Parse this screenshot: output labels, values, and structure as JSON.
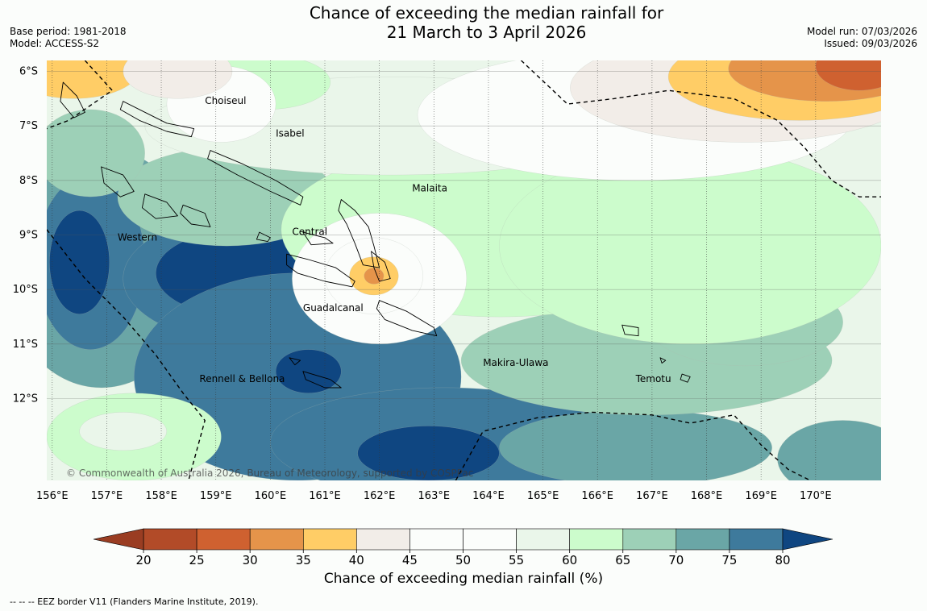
{
  "header": {
    "title_line1": "Chance of exceeding the median rainfall for",
    "title_line2": "21 March to 3 April 2026",
    "base_period": "Base period: 1981-2018",
    "model": "Model: ACCESS-S2",
    "model_run": "Model run: 07/03/2026",
    "issued": "Issued: 09/03/2026"
  },
  "map": {
    "lon_range": [
      155.2,
      170.5
    ],
    "lat_range": [
      -13.5,
      -5.8
    ],
    "lat_ticks": [
      {
        "value": -6,
        "label": "6°S"
      },
      {
        "value": -7,
        "label": "7°S"
      },
      {
        "value": -8,
        "label": "8°S"
      },
      {
        "value": -9,
        "label": "9°S"
      },
      {
        "value": -10,
        "label": "10°S"
      },
      {
        "value": -11,
        "label": "11°S"
      },
      {
        "value": -12,
        "label": "12°S"
      }
    ],
    "lon_ticks": [
      {
        "value": 156,
        "label": "156°E"
      },
      {
        "value": 157,
        "label": "157°E"
      },
      {
        "value": 158,
        "label": "158°E"
      },
      {
        "value": 159,
        "label": "159°E"
      },
      {
        "value": 160,
        "label": "160°E"
      },
      {
        "value": 161,
        "label": "161°E"
      },
      {
        "value": 162,
        "label": "162°E"
      },
      {
        "value": 163,
        "label": "163°E"
      },
      {
        "value": 164,
        "label": "164°E"
      },
      {
        "value": 165,
        "label": "165°E"
      },
      {
        "value": 166,
        "label": "166°E"
      },
      {
        "value": 167,
        "label": "167°E"
      },
      {
        "value": 168,
        "label": "168°E"
      },
      {
        "value": 169,
        "label": "169°E"
      },
      {
        "value": 170,
        "label": "170°E"
      }
    ],
    "province_labels": [
      {
        "name": "Choiseul",
        "lon": 158.1,
        "lat": -6.6
      },
      {
        "name": "Isabel",
        "lon": 159.4,
        "lat": -7.2
      },
      {
        "name": "Malaita",
        "lon": 161.9,
        "lat": -8.2
      },
      {
        "name": "Central",
        "lon": 159.7,
        "lat": -9.0
      },
      {
        "name": "Western",
        "lon": 156.5,
        "lat": -9.1
      },
      {
        "name": "Guadalcanal",
        "lon": 159.9,
        "lat": -10.4
      },
      {
        "name": "Makira-Ulawa",
        "lon": 163.2,
        "lat": -11.4
      },
      {
        "name": "Temotu",
        "lon": 166.0,
        "lat": -11.7
      },
      {
        "name": "Rennell & Bellona",
        "lon": 158.0,
        "lat": -11.7
      }
    ],
    "copyright": "© Commonwealth of Australia 2026, Bureau of Meteorology, supported by COSPPac",
    "probability_field": {
      "description": "approximate probability (%) field reproduced as smooth blobs",
      "background": 57,
      "features": [
        {
          "lon": 156.2,
          "lat": -9.6,
          "rx": 1.8,
          "ry": 2.2,
          "value": 73
        },
        {
          "lon": 156.0,
          "lat": -9.5,
          "rx": 1.0,
          "ry": 1.6,
          "value": 78
        },
        {
          "lon": 155.8,
          "lat": -9.5,
          "rx": 0.55,
          "ry": 0.95,
          "value": 82
        },
        {
          "lon": 159.0,
          "lat": -9.8,
          "rx": 2.4,
          "ry": 1.2,
          "value": 77
        },
        {
          "lon": 158.8,
          "lat": -9.7,
          "rx": 1.6,
          "ry": 0.8,
          "value": 81
        },
        {
          "lon": 159.8,
          "lat": -11.6,
          "rx": 3.0,
          "ry": 1.9,
          "value": 76
        },
        {
          "lon": 160.0,
          "lat": -11.5,
          "rx": 0.6,
          "ry": 0.4,
          "value": 81
        },
        {
          "lon": 162.5,
          "lat": -12.8,
          "rx": 3.2,
          "ry": 1.0,
          "value": 77
        },
        {
          "lon": 162.2,
          "lat": -13.0,
          "rx": 1.3,
          "ry": 0.5,
          "value": 81
        },
        {
          "lon": 166.0,
          "lat": -12.9,
          "rx": 2.5,
          "ry": 0.7,
          "value": 74
        },
        {
          "lon": 169.8,
          "lat": -13.1,
          "rx": 1.2,
          "ry": 0.7,
          "value": 73
        },
        {
          "lon": 166.2,
          "lat": -11.3,
          "rx": 3.4,
          "ry": 1.0,
          "value": 67
        },
        {
          "lon": 168.0,
          "lat": -10.6,
          "rx": 1.8,
          "ry": 0.8,
          "value": 66
        },
        {
          "lon": 158.5,
          "lat": -8.3,
          "rx": 2.0,
          "ry": 0.9,
          "value": 68
        },
        {
          "lon": 156.0,
          "lat": -7.5,
          "rx": 1.0,
          "ry": 0.8,
          "value": 66
        },
        {
          "lon": 163.5,
          "lat": -8.9,
          "rx": 4.0,
          "ry": 1.6,
          "value": 62
        },
        {
          "lon": 167.0,
          "lat": -9.2,
          "rx": 3.5,
          "ry": 1.8,
          "value": 61
        },
        {
          "lon": 161.5,
          "lat": -7.0,
          "rx": 4.5,
          "ry": 0.9,
          "value": 58
        },
        {
          "lon": 159.2,
          "lat": -6.2,
          "rx": 1.2,
          "ry": 0.5,
          "value": 63
        },
        {
          "lon": 158.4,
          "lat": -6.6,
          "rx": 1.0,
          "ry": 0.7,
          "value": 52
        },
        {
          "lon": 166.0,
          "lat": -6.8,
          "rx": 4.0,
          "ry": 1.2,
          "value": 54
        },
        {
          "lon": 161.3,
          "lat": -9.8,
          "rx": 1.6,
          "ry": 1.2,
          "value": 52
        },
        {
          "lon": 161.2,
          "lat": -9.75,
          "rx": 0.9,
          "ry": 0.7,
          "value": 46
        },
        {
          "lon": 161.2,
          "lat": -9.75,
          "rx": 0.45,
          "ry": 0.35,
          "value": 38
        },
        {
          "lon": 161.2,
          "lat": -9.75,
          "rx": 0.18,
          "ry": 0.15,
          "value": 31
        },
        {
          "lon": 155.7,
          "lat": -5.95,
          "rx": 1.2,
          "ry": 0.55,
          "value": 38
        },
        {
          "lon": 157.6,
          "lat": -6.0,
          "rx": 1.0,
          "ry": 0.5,
          "value": 44
        },
        {
          "lon": 168.0,
          "lat": -6.3,
          "rx": 3.2,
          "ry": 1.0,
          "value": 43
        },
        {
          "lon": 169.0,
          "lat": -6.1,
          "rx": 2.4,
          "ry": 0.8,
          "value": 37
        },
        {
          "lon": 169.5,
          "lat": -5.95,
          "rx": 1.8,
          "ry": 0.6,
          "value": 32
        },
        {
          "lon": 170.1,
          "lat": -5.9,
          "rx": 0.8,
          "ry": 0.45,
          "value": 27
        },
        {
          "lon": 156.8,
          "lat": -12.7,
          "rx": 1.6,
          "ry": 0.8,
          "value": 61
        },
        {
          "lon": 156.6,
          "lat": -12.6,
          "rx": 0.8,
          "ry": 0.35,
          "value": 56
        }
      ]
    }
  },
  "colorbar": {
    "levels": [
      20,
      25,
      30,
      35,
      40,
      45,
      50,
      55,
      60,
      65,
      70,
      75,
      80
    ],
    "tick_labels": [
      "20",
      "25",
      "30",
      "35",
      "40",
      "45",
      "50",
      "55",
      "60",
      "65",
      "70",
      "75",
      "80"
    ],
    "colors": [
      "#b24b28",
      "#cf6130",
      "#e5944a",
      "#ffcd66",
      "#f2ede8",
      "#fbfdfb",
      "#fbfdfb",
      "#eaf6ea",
      "#ccfccc",
      "#9dd0b7",
      "#6aa6a6",
      "#3e7a9c",
      "#134f85"
    ],
    "under_color": "#9a3d22",
    "over_color": "#0f4681",
    "title": "Chance of exceeding median rainfall (%)"
  },
  "footnote": "--  --  -- EEZ border V11 (Flanders Marine Institute, 2019)."
}
